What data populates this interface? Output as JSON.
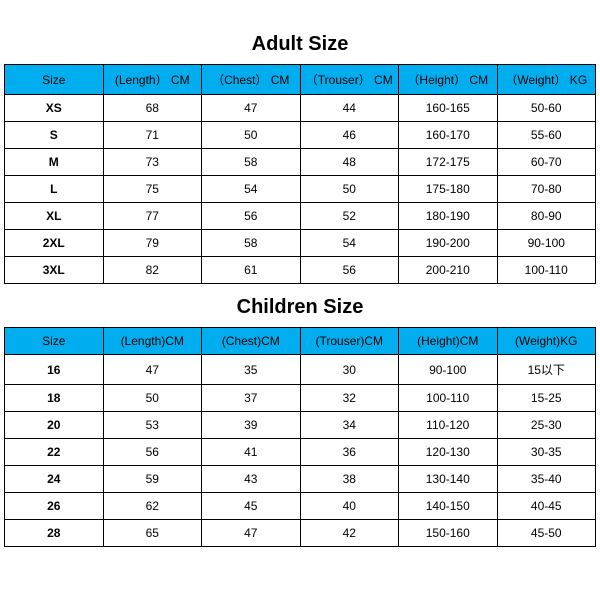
{
  "header_bg": "#00aef0",
  "adult": {
    "title": "Adult Size",
    "columns": [
      "Size",
      "(Length） CM",
      "（Chest） CM",
      "（Trouser） CM",
      "（Height） CM",
      "（Weight） KG"
    ],
    "rows": [
      [
        "XS",
        "68",
        "47",
        "44",
        "160-165",
        "50-60"
      ],
      [
        "S",
        "71",
        "50",
        "46",
        "160-170",
        "55-60"
      ],
      [
        "M",
        "73",
        "58",
        "48",
        "172-175",
        "60-70"
      ],
      [
        "L",
        "75",
        "54",
        "50",
        "175-180",
        "70-80"
      ],
      [
        "XL",
        "77",
        "56",
        "52",
        "180-190",
        "80-90"
      ],
      [
        "2XL",
        "79",
        "58",
        "54",
        "190-200",
        "90-100"
      ],
      [
        "3XL",
        "82",
        "61",
        "56",
        "200-210",
        "100-110"
      ]
    ]
  },
  "children": {
    "title": "Children Size",
    "columns": [
      "Size",
      "(Length)CM",
      "(Chest)CM",
      "(Trouser)CM",
      "(Height)CM",
      "(Weight)KG"
    ],
    "rows": [
      [
        "16",
        "47",
        "35",
        "30",
        "90-100",
        "15以下"
      ],
      [
        "18",
        "50",
        "37",
        "32",
        "100-110",
        "15-25"
      ],
      [
        "20",
        "53",
        "39",
        "34",
        "110-120",
        "25-30"
      ],
      [
        "22",
        "56",
        "41",
        "36",
        "120-130",
        "30-35"
      ],
      [
        "24",
        "59",
        "43",
        "38",
        "130-140",
        "35-40"
      ],
      [
        "26",
        "62",
        "45",
        "40",
        "140-150",
        "40-45"
      ],
      [
        "28",
        "65",
        "47",
        "42",
        "150-160",
        "45-50"
      ]
    ]
  }
}
